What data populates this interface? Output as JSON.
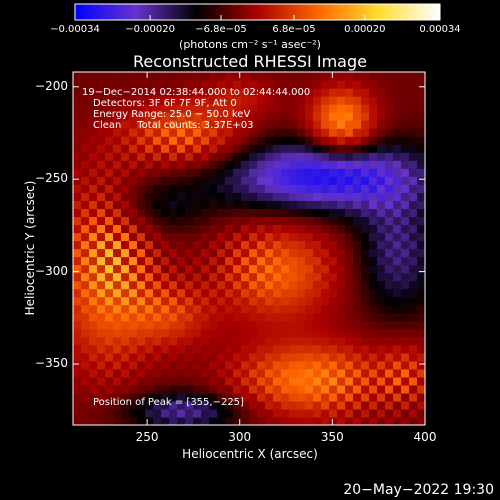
{
  "chart_data": {
    "type": "heatmap",
    "title": "Reconstructed RHESSI Image",
    "xlabel": "Heliocentric X (arcsec)",
    "ylabel": "Heliocentric Y (arcsec)",
    "xlim": [
      210,
      400
    ],
    "ylim": [
      -383,
      -192
    ],
    "x_ticks": [
      250,
      300,
      350,
      400
    ],
    "y_ticks": [
      -200,
      -250,
      -300,
      -350
    ],
    "x_tick_labels": [
      "250",
      "300",
      "350",
      "400"
    ],
    "y_tick_labels": [
      "−200",
      "−250",
      "−300",
      "−350"
    ],
    "colorbar": {
      "min": -0.00034,
      "max": 0.00034,
      "ticks": [
        -0.00034,
        -0.0002,
        -6.8e-05,
        6.8e-05,
        0.0002,
        0.00034
      ],
      "tick_labels": [
        "−0.00034",
        "−0.00020",
        "−6.8e−05",
        "6.8e−05",
        "0.00020",
        "0.00034"
      ],
      "unit_label": "(photons cm⁻² s⁻¹ asec⁻²)",
      "colors": [
        "#0000ff",
        "#6633cc",
        "#000000",
        "#aa0000",
        "#ff6600",
        "#ffdd33",
        "#ffffff"
      ]
    },
    "annotations": [
      "19−Dec−2014 02:38:44.000 to 02:44:44.000",
      "Detectors: 3F 6F 7F 9F, Att 0",
      "Energy Range: 25.0 − 50.0 keV",
      "Clean     Total counts: 3.37E+03"
    ],
    "peak_label": "Position of Peak = [355,−225]",
    "peak": [
      355,
      -225
    ],
    "sources": [
      {
        "x": 355,
        "y": -218,
        "amp": 0.00034,
        "sx": 12,
        "sy": 12
      },
      {
        "x": 270,
        "y": -225,
        "amp": 0.00024,
        "sx": 22,
        "sy": 12
      },
      {
        "x": 228,
        "y": -300,
        "amp": 0.0003,
        "sx": 18,
        "sy": 35
      },
      {
        "x": 262,
        "y": -323,
        "amp": 0.00018,
        "sx": 16,
        "sy": 12
      },
      {
        "x": 320,
        "y": -300,
        "amp": 0.00026,
        "sx": 22,
        "sy": 18
      },
      {
        "x": 338,
        "y": -358,
        "amp": 0.0003,
        "sx": 28,
        "sy": 14
      },
      {
        "x": 300,
        "y": -205,
        "amp": 0.0001,
        "sx": 14,
        "sy": 8
      },
      {
        "x": 390,
        "y": -355,
        "amp": 0.00014,
        "sx": 10,
        "sy": 12
      },
      {
        "x": 345,
        "y": -248,
        "amp": -0.0003,
        "sx": 40,
        "sy": 14
      },
      {
        "x": 270,
        "y": -375,
        "amp": -0.00018,
        "sx": 24,
        "sy": 8
      },
      {
        "x": 250,
        "y": -265,
        "amp": -0.00012,
        "sx": 20,
        "sy": 12
      },
      {
        "x": 385,
        "y": -290,
        "amp": -0.00016,
        "sx": 16,
        "sy": 24
      }
    ]
  },
  "footer": {
    "timestamp": "20−May−2022 19:30"
  }
}
